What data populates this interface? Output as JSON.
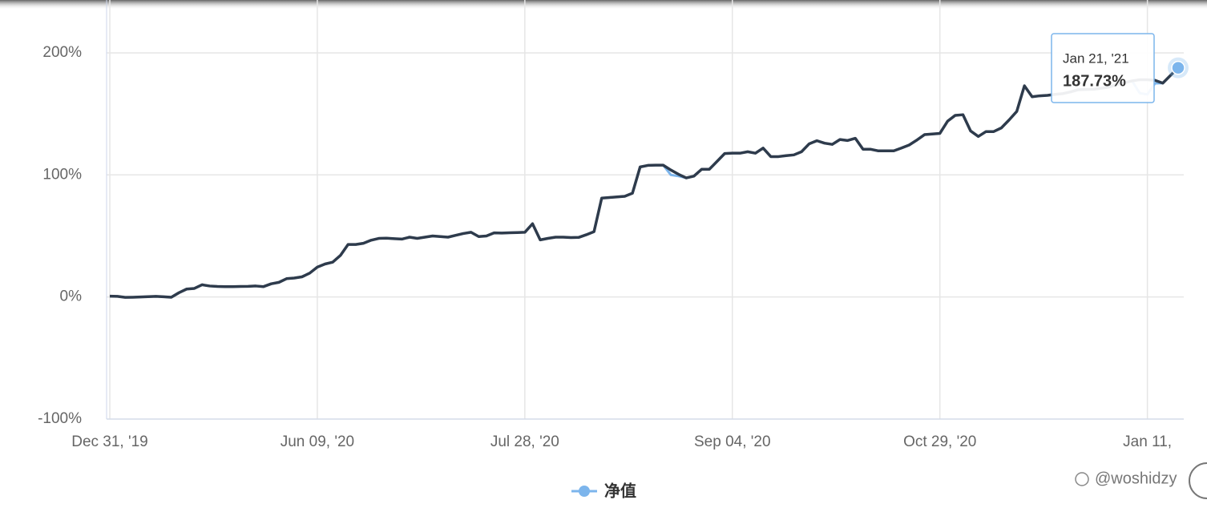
{
  "chart_data": {
    "type": "line",
    "xlim": [
      0,
      139
    ],
    "xticks": [
      {
        "value": 0,
        "label": "Dec 31, '19"
      },
      {
        "value": 27,
        "label": "Jun 09, '20"
      },
      {
        "value": 54,
        "label": "Jul 28, '20"
      },
      {
        "value": 81,
        "label": "Sep 04, '20"
      },
      {
        "value": 108,
        "label": "Oct 29, '20"
      },
      {
        "value": 135,
        "label": "Jan 11,"
      }
    ],
    "ylim": [
      -100,
      240
    ],
    "yticks": [
      {
        "value": -100,
        "label": "-100%"
      },
      {
        "value": 0,
        "label": "0%"
      },
      {
        "value": 100,
        "label": "100%"
      },
      {
        "value": 200,
        "label": "200%"
      }
    ],
    "grid": true,
    "series": [
      {
        "name": "净值",
        "color": "#7cb5ec",
        "values": [
          0.7,
          0.5,
          -0.3,
          -0.2,
          0,
          0.3,
          0.5,
          0.2,
          -0.2,
          3.5,
          6.5,
          7,
          10,
          9,
          8.6,
          8.5,
          8.5,
          8.6,
          8.7,
          9,
          8.5,
          10.8,
          12,
          15,
          15.5,
          16.5,
          19.5,
          24.5,
          27,
          28.5,
          34,
          43,
          43,
          44,
          46.5,
          48,
          48.2,
          47.8,
          47.4,
          49,
          48,
          49,
          50,
          49.5,
          49,
          50.5,
          52,
          53,
          49.5,
          50,
          52.5,
          52.4,
          52.6,
          52.8,
          53,
          60,
          46.8,
          48,
          49,
          49,
          48.7,
          48.8,
          51,
          53.5,
          81,
          81.5,
          82,
          82.5,
          85,
          106.5,
          107.8,
          108,
          108,
          100,
          99,
          97.5,
          99,
          104.6,
          104.6,
          111,
          117.5,
          117.8,
          117.8,
          119,
          117.8,
          122,
          115,
          115,
          115.8,
          116.4,
          119,
          125.5,
          128,
          126,
          125,
          129,
          128.2,
          130,
          121,
          121,
          119.7,
          119.7,
          119.7,
          122,
          124.5,
          128.5,
          133,
          133.5,
          134,
          144,
          148.8,
          149.3,
          136,
          131.5,
          135.5,
          135.5,
          138.5,
          145,
          152,
          173,
          164,
          164.8,
          165.2,
          166,
          166.6,
          168,
          169.8,
          170,
          170.2,
          171,
          172,
          174,
          175.5,
          177,
          167,
          166,
          175,
          175.2,
          181.5,
          187.73
        ]
      },
      {
        "color": "#2e3b4c",
        "values": [
          0.7,
          0.5,
          -0.3,
          -0.2,
          0,
          0.3,
          0.5,
          0.2,
          -0.2,
          3.5,
          6.5,
          7,
          10,
          9,
          8.6,
          8.5,
          8.5,
          8.6,
          8.7,
          9,
          8.5,
          10.8,
          12,
          15,
          15.5,
          16.5,
          19.5,
          24.5,
          27,
          28.5,
          34,
          43,
          43,
          44,
          46.5,
          48,
          48.2,
          47.8,
          47.4,
          49,
          48,
          49,
          50,
          49.5,
          49,
          50.5,
          52,
          53,
          49.5,
          50,
          52.5,
          52.4,
          52.6,
          52.8,
          53,
          60,
          46.8,
          48,
          49,
          49,
          48.7,
          48.8,
          51,
          53.5,
          81,
          81.5,
          82,
          82.5,
          85,
          106.5,
          107.8,
          108,
          108,
          104,
          100.5,
          97.5,
          99,
          104.6,
          104.6,
          111,
          117.5,
          117.8,
          117.8,
          119,
          117.8,
          122,
          115,
          115,
          115.8,
          116.4,
          119,
          125.5,
          128,
          126,
          125,
          129,
          128.2,
          130,
          121,
          121,
          119.7,
          119.7,
          119.7,
          122,
          124.5,
          128.5,
          133,
          133.5,
          134,
          144,
          148.8,
          149.3,
          136,
          131.5,
          135.5,
          135.5,
          138.5,
          145,
          152,
          173,
          164,
          164.8,
          165.2,
          166,
          166.6,
          168,
          169.8,
          170,
          170.2,
          171,
          172,
          174,
          175.5,
          177,
          178,
          178,
          177.5,
          175.2,
          181.5,
          187.73
        ]
      }
    ],
    "tooltip": {
      "date": "Jan 21, '21",
      "label": "187.73%"
    },
    "watermark": "@woshidzy"
  }
}
